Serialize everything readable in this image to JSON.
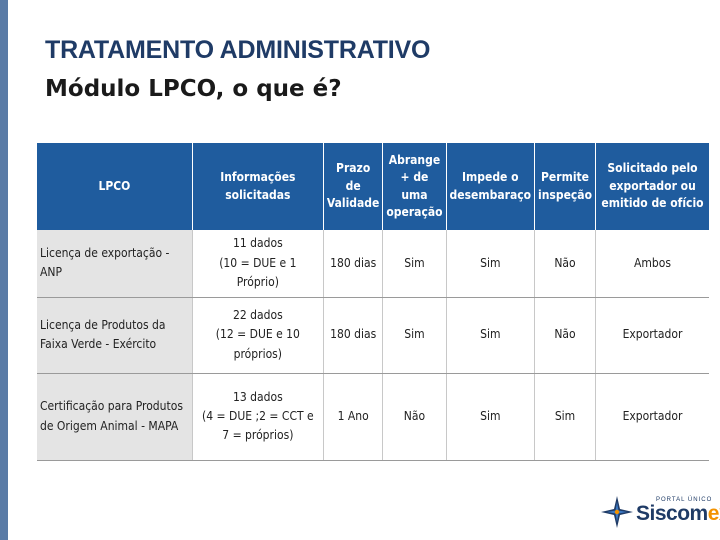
{
  "header": {
    "title": "TRATAMENTO ADMINISTRATIVO",
    "subtitle": "Módulo LPCO, o que é?"
  },
  "table": {
    "columns": [
      "LPCO",
      "Informações solicitadas",
      "Prazo de Validade",
      "Abrange + de uma operação",
      "Impede o desembaraço",
      "Permite inspeção",
      "Solicitado pelo exportador ou emitido de ofício"
    ],
    "rows": [
      {
        "lpco": "Licença de exportação - ANP",
        "info_line1": "11 dados",
        "info_line2": "(10 = DUE e 1 Próprio)",
        "info_line3": "",
        "prazo": "180 dias",
        "abrange": "Sim",
        "impede": "Sim",
        "permite": "Não",
        "solicitado": "Ambos"
      },
      {
        "lpco": "Licença de Produtos da Faixa Verde - Exército",
        "info_line1": "22 dados",
        "info_line2": "(12 = DUE e 10 próprios)",
        "info_line3": "",
        "prazo": "180 dias",
        "abrange": "Sim",
        "impede": "Sim",
        "permite": "Não",
        "solicitado": "Exportador"
      },
      {
        "lpco": "Certificação para Produtos de Origem Animal - MAPA",
        "info_line1": "13 dados",
        "info_line2": "(4 = DUE ;2 = CCT e",
        "info_line3": "7 = próprios)",
        "prazo": "1 Ano",
        "abrange": "Não",
        "impede": "Sim",
        "permite": "Sim",
        "solicitado": "Exportador"
      }
    ]
  },
  "logo": {
    "portal_text": "PORTAL ÚNICO",
    "name_main": "Siscom",
    "name_accent": "ex",
    "icon": "compass-star-icon",
    "colors": {
      "primary": "#1f3b66",
      "accent": "#f39200"
    }
  },
  "colors": {
    "header_bg": "#1f5c9e",
    "name_cell_bg": "#e4e4e4",
    "left_bar": "#5a7ba6"
  }
}
